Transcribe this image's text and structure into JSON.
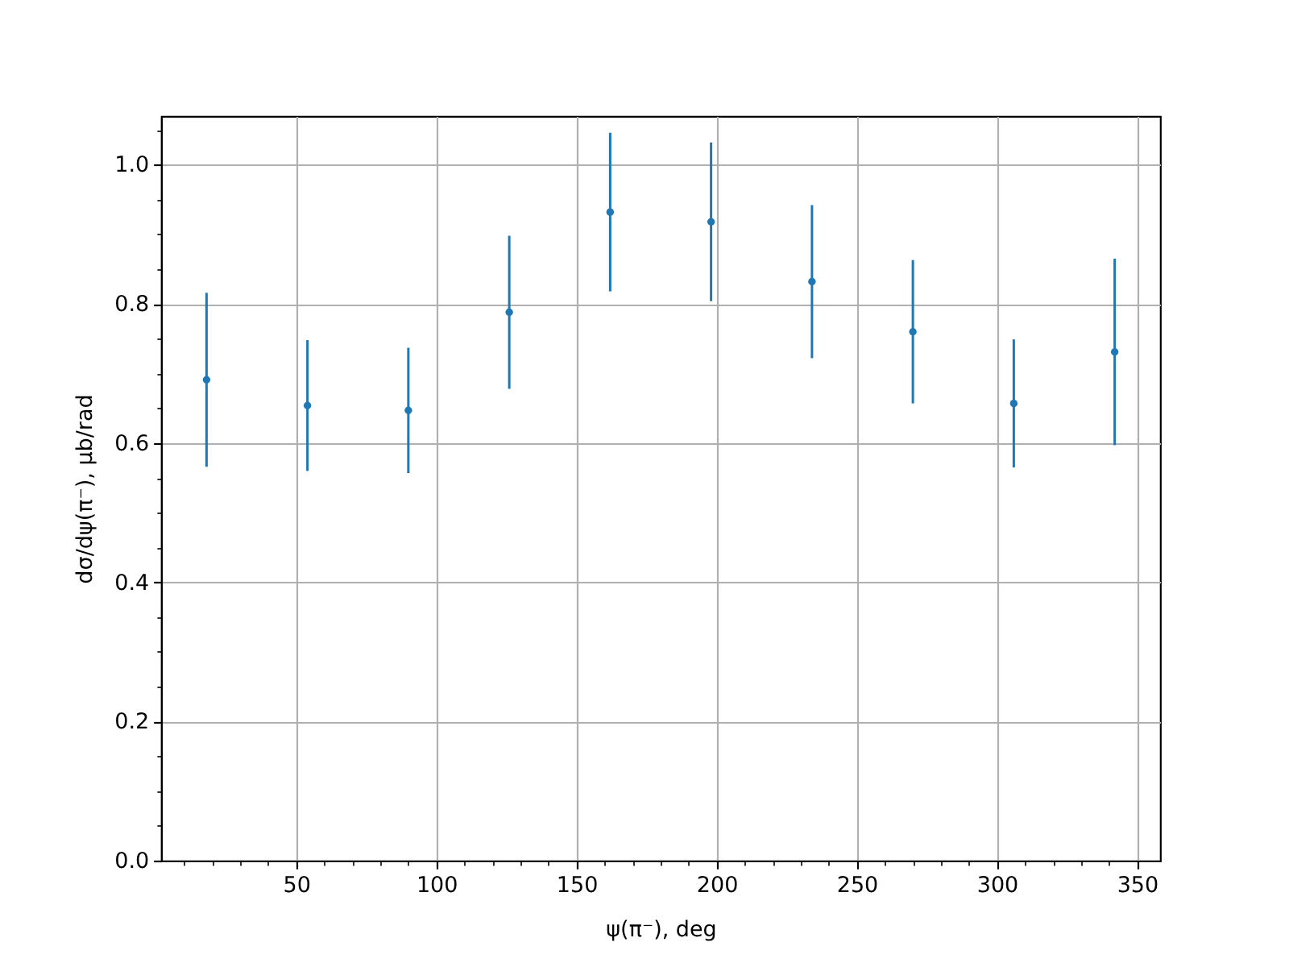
{
  "chart_data": {
    "type": "scatter",
    "xlabel": "ψ(π⁻), deg",
    "ylabel": "dσ/dψ(π⁻), μb/rad",
    "x": [
      18,
      54,
      90,
      126,
      162,
      198,
      234,
      270,
      306,
      342
    ],
    "series": [
      {
        "color": "#1f77b4",
        "values": [
          0.691,
          0.654,
          0.647,
          0.788,
          0.932,
          0.918,
          0.832,
          0.76,
          0.657,
          0.731
        ],
        "errors": [
          0.125,
          0.094,
          0.09,
          0.11,
          0.114,
          0.114,
          0.11,
          0.103,
          0.092,
          0.134
        ]
      }
    ],
    "xlim": [
      1.8,
      358.2
    ],
    "ylim": [
      0,
      1.07
    ],
    "xticks": [
      {
        "value": 10,
        "label": null
      },
      {
        "value": 20,
        "label": null
      },
      {
        "value": 30,
        "label": null
      },
      {
        "value": 40,
        "label": null
      },
      50,
      {
        "value": 60,
        "label": null
      },
      {
        "value": 70,
        "label": null
      },
      {
        "value": 80,
        "label": null
      },
      {
        "value": 90,
        "label": null
      },
      100,
      {
        "value": 110,
        "label": null
      },
      {
        "value": 120,
        "label": null
      },
      {
        "value": 130,
        "label": null
      },
      {
        "value": 140,
        "label": null
      },
      150,
      {
        "value": 160,
        "label": null
      },
      {
        "value": 170,
        "label": null
      },
      {
        "value": 180,
        "label": null
      },
      {
        "value": 190,
        "label": null
      },
      200,
      {
        "value": 210,
        "label": null
      },
      {
        "value": 220,
        "label": null
      },
      {
        "value": 230,
        "label": null
      },
      {
        "value": 240,
        "label": null
      },
      250,
      {
        "value": 260,
        "label": null
      },
      {
        "value": 270,
        "label": null
      },
      {
        "value": 280,
        "label": null
      },
      {
        "value": 290,
        "label": null
      },
      300,
      {
        "value": 310,
        "label": null
      },
      {
        "value": 320,
        "label": null
      },
      {
        "value": 330,
        "label": null
      },
      {
        "value": 340,
        "label": null
      },
      350
    ],
    "yticks": [
      {
        "value": 0,
        "label": "0.0"
      },
      {
        "value": 0.05,
        "label": null
      },
      {
        "value": 0.1,
        "label": null
      },
      {
        "value": 0.15,
        "label": null
      },
      0.2,
      {
        "value": 0.25,
        "label": null
      },
      {
        "value": 0.3,
        "label": null
      },
      {
        "value": 0.35,
        "label": null
      },
      0.4,
      {
        "value": 0.45,
        "label": null
      },
      {
        "value": 0.5,
        "label": null
      },
      {
        "value": 0.55,
        "label": null
      },
      0.6,
      {
        "value": 0.65,
        "label": null
      },
      {
        "value": 0.7,
        "label": null
      },
      {
        "value": 0.75,
        "label": null
      },
      0.8,
      {
        "value": 0.85,
        "label": null
      },
      {
        "value": 0.9,
        "label": null
      },
      {
        "value": 0.95,
        "label": null
      },
      {
        "value": 1,
        "label": "1.0"
      },
      {
        "value": 1.05,
        "label": null
      }
    ],
    "grid": true,
    "marker": "circle"
  }
}
